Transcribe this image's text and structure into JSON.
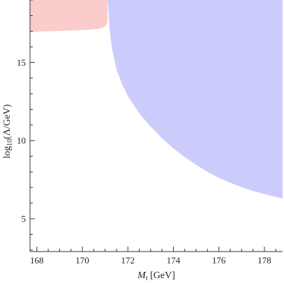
{
  "chart_data": {
    "type": "area",
    "xlim": [
      167.7,
      178.8
    ],
    "ylim": [
      2.9,
      19.0
    ],
    "x_ticks": [
      168,
      170,
      172,
      174,
      176,
      178
    ],
    "y_ticks": [
      5,
      10,
      15
    ],
    "x_tick_labels": [
      "168",
      "170",
      "172",
      "174",
      "176",
      "178"
    ],
    "y_tick_labels": [
      "5",
      "10",
      "15"
    ],
    "xlabel_main": "M",
    "xlabel_sub": "t",
    "xlabel_unit": " [GeV]",
    "ylabel_main": "log",
    "ylabel_sub": "10",
    "ylabel_rest": "(Λ/GeV)",
    "grid": false,
    "series": [
      {
        "color": "#fbcccc",
        "x": [
          167.7,
          168.0,
          168.5,
          169.0,
          169.5,
          170.0,
          170.5,
          170.85,
          171.0,
          171.1,
          171.12
        ],
        "y": [
          16.95,
          16.97,
          17.0,
          17.02,
          17.05,
          17.07,
          17.12,
          17.2,
          17.3,
          17.5,
          19.0
        ]
      },
      {
        "color": "#ccccfc",
        "x": [
          171.12,
          171.2,
          171.3,
          171.5,
          171.75,
          172.0,
          172.5,
          173.0,
          173.5,
          174.0,
          174.5,
          175.0,
          175.5,
          176.0,
          176.5,
          177.0,
          177.5,
          178.0,
          178.5,
          178.8
        ],
        "y": [
          19.0,
          17.1,
          15.9,
          14.55,
          13.6,
          12.85,
          11.75,
          10.9,
          10.15,
          9.5,
          8.95,
          8.45,
          8.0,
          7.62,
          7.3,
          7.02,
          6.78,
          6.58,
          6.4,
          6.3
        ]
      }
    ]
  }
}
